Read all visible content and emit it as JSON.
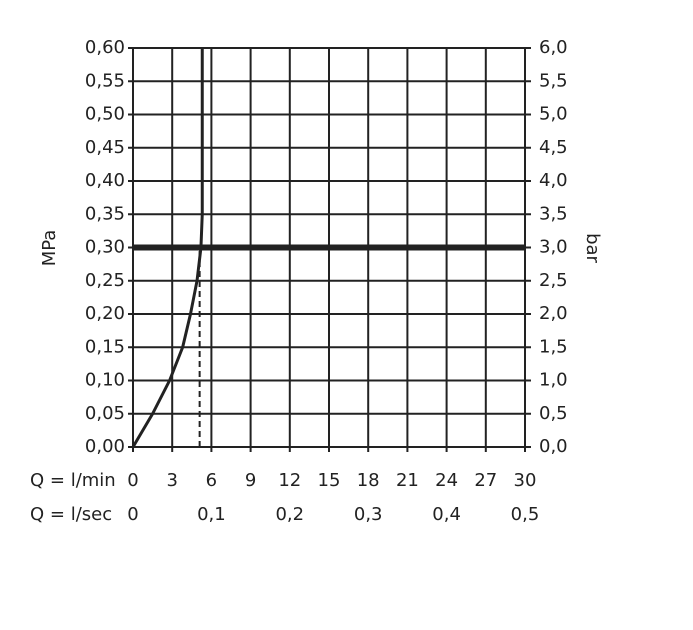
{
  "chart_data": {
    "type": "line",
    "ylabel": "MPa",
    "y2label": "bar",
    "x_row_label": "Q = l/min",
    "x2_row_label": "Q = l/sec",
    "xlim": [
      0,
      30
    ],
    "xticks": [
      0,
      3,
      6,
      9,
      12,
      15,
      18,
      21,
      24,
      27,
      30
    ],
    "x2lim": [
      0,
      0.5
    ],
    "x2ticks": [
      0,
      {
        "value": 0.1,
        "label": "0,1"
      },
      {
        "value": 0.2,
        "label": "0,2"
      },
      {
        "value": 0.3,
        "label": "0,3"
      },
      {
        "value": 0.4,
        "label": "0,4"
      },
      {
        "value": 0.5,
        "label": "0,5"
      }
    ],
    "ylim": [
      0,
      0.6
    ],
    "yticks": [
      {
        "value": 0,
        "label": "0,00"
      },
      {
        "value": 0.05,
        "label": "0,05"
      },
      {
        "value": 0.1,
        "label": "0,10"
      },
      {
        "value": 0.15,
        "label": "0,15"
      },
      {
        "value": 0.2,
        "label": "0,20"
      },
      {
        "value": 0.25,
        "label": "0,25"
      },
      {
        "value": 0.3,
        "label": "0,30"
      },
      {
        "value": 0.35,
        "label": "0,35"
      },
      {
        "value": 0.4,
        "label": "0,40"
      },
      {
        "value": 0.45,
        "label": "0,45"
      },
      {
        "value": 0.5,
        "label": "0,50"
      },
      {
        "value": 0.55,
        "label": "0,55"
      },
      {
        "value": 0.6,
        "label": "0,60"
      }
    ],
    "y2lim": [
      0,
      6
    ],
    "y2ticks": [
      {
        "value": 0,
        "label": "0,0"
      },
      {
        "value": 0.5,
        "label": "0,5"
      },
      {
        "value": 1,
        "label": "1,0"
      },
      {
        "value": 1.5,
        "label": "1,5"
      },
      {
        "value": 2,
        "label": "2,0"
      },
      {
        "value": 2.5,
        "label": "2,5"
      },
      {
        "value": 3,
        "label": "3,0"
      },
      {
        "value": 3.5,
        "label": "3,5"
      },
      {
        "value": 4,
        "label": "4,0"
      },
      {
        "value": 4.5,
        "label": "4,5"
      },
      {
        "value": 5,
        "label": "5,0"
      },
      {
        "value": 5.5,
        "label": "5,5"
      },
      {
        "value": 6,
        "label": "6,0"
      }
    ],
    "grid": true,
    "reference_y": 0.3,
    "marker_x": 5.1,
    "series": [
      {
        "color": "#222222",
        "x": [
          0,
          1.5,
          2.8,
          3.8,
          4.4,
          4.9,
          5.2,
          5.3,
          5.3
        ],
        "values": [
          0,
          0.05,
          0.1,
          0.15,
          0.2,
          0.25,
          0.3,
          0.35,
          0.6
        ]
      }
    ]
  }
}
